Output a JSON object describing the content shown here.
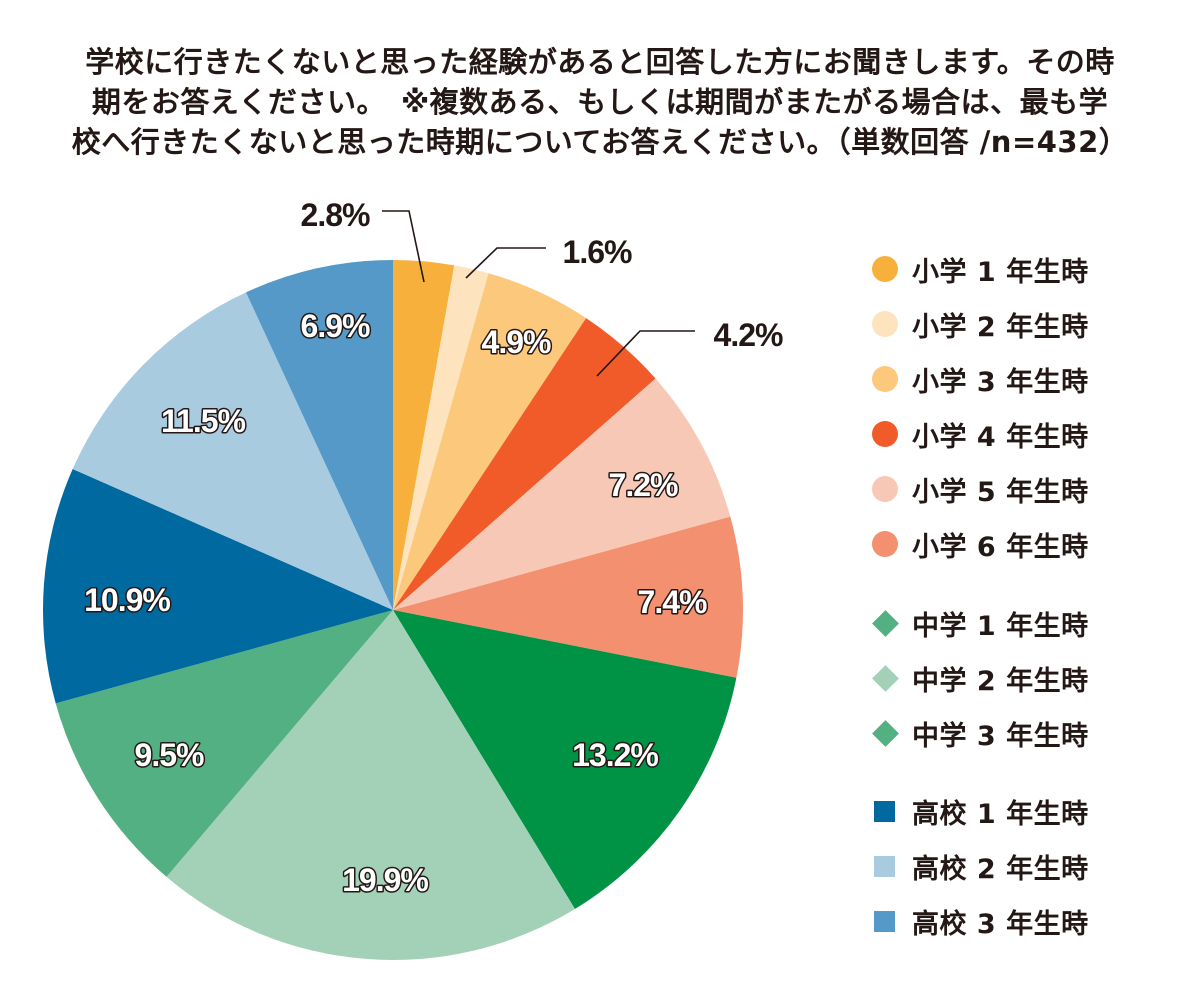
{
  "title_lines": [
    "学校に行きたくないと思った経験があると回答した方にお聞きします。その時",
    "期をお答えください。　※複数ある、もしくは期間がまたがる場合は、最も学",
    "校へ行きたくないと思った時期についてお答えください。（単数回答 /n=432）"
  ],
  "chart_data": {
    "type": "pie",
    "title": "学校に行きたくないと思った経験があると回答した方にお聞きします。その時期をお答えください。　※複数ある、もしくは期間がまたがる場合は、最も学校へ行きたくないと思った時期についてお答えください。（単数回答 /n=432）",
    "n": 432,
    "unit": "%",
    "start_angle": "12 o'clock",
    "direction": "clockwise",
    "legend_position": "right",
    "slices": [
      {
        "label": "小学 1 年生時",
        "value": 2.8,
        "display": "2.8%",
        "color": "#F8B03D",
        "marker": "circle",
        "label_position": "outside",
        "label_color": "#231815"
      },
      {
        "label": "小学 2 年生時",
        "value": 1.6,
        "display": "1.6%",
        "color": "#FDE3BE",
        "marker": "circle",
        "label_position": "outside",
        "label_color": "#231815"
      },
      {
        "label": "小学 3 年生時",
        "value": 4.9,
        "display": "4.9%",
        "color": "#FCC87C",
        "marker": "circle",
        "label_position": "inside",
        "label_color": "#ffffff"
      },
      {
        "label": "小学 4 年生時",
        "value": 4.2,
        "display": "4.2%",
        "color": "#F15A29",
        "marker": "circle",
        "label_position": "outside",
        "label_color": "#231815"
      },
      {
        "label": "小学 5 年生時",
        "value": 7.2,
        "display": "7.2%",
        "color": "#F8C8B6",
        "marker": "circle",
        "label_position": "inside",
        "label_color": "#ffffff"
      },
      {
        "label": "小学 6 年生時",
        "value": 7.4,
        "display": "7.4%",
        "color": "#F3906F",
        "marker": "circle",
        "label_position": "inside",
        "label_color": "#ffffff"
      },
      {
        "label": "中学 1 年生時",
        "value": 13.2,
        "display": "13.2%",
        "color": "#009245",
        "marker": "diamond",
        "legend_color": "#53B082",
        "label_position": "inside",
        "label_color": "#ffffff"
      },
      {
        "label": "中学 2 年生時",
        "value": 19.9,
        "display": "19.9%",
        "color": "#A3D1B8",
        "marker": "diamond",
        "label_position": "inside",
        "label_color": "#ffffff"
      },
      {
        "label": "中学 3 年生時",
        "value": 9.5,
        "display": "9.5%",
        "color": "#53B082",
        "marker": "diamond",
        "label_position": "inside",
        "label_color": "#ffffff"
      },
      {
        "label": "高校 1 年生時",
        "value": 10.9,
        "display": "10.9%",
        "color": "#00699F",
        "marker": "square",
        "label_position": "inside",
        "label_color": "#ffffff"
      },
      {
        "label": "高校 2 年生時",
        "value": 11.5,
        "display": "11.5%",
        "color": "#A9CBE0",
        "marker": "square",
        "label_position": "inside",
        "label_color": "#ffffff"
      },
      {
        "label": "高校 3 年生時",
        "value": 6.9,
        "display": "6.9%",
        "color": "#5499C7",
        "marker": "square",
        "label_position": "inside",
        "label_color": "#ffffff"
      }
    ]
  }
}
